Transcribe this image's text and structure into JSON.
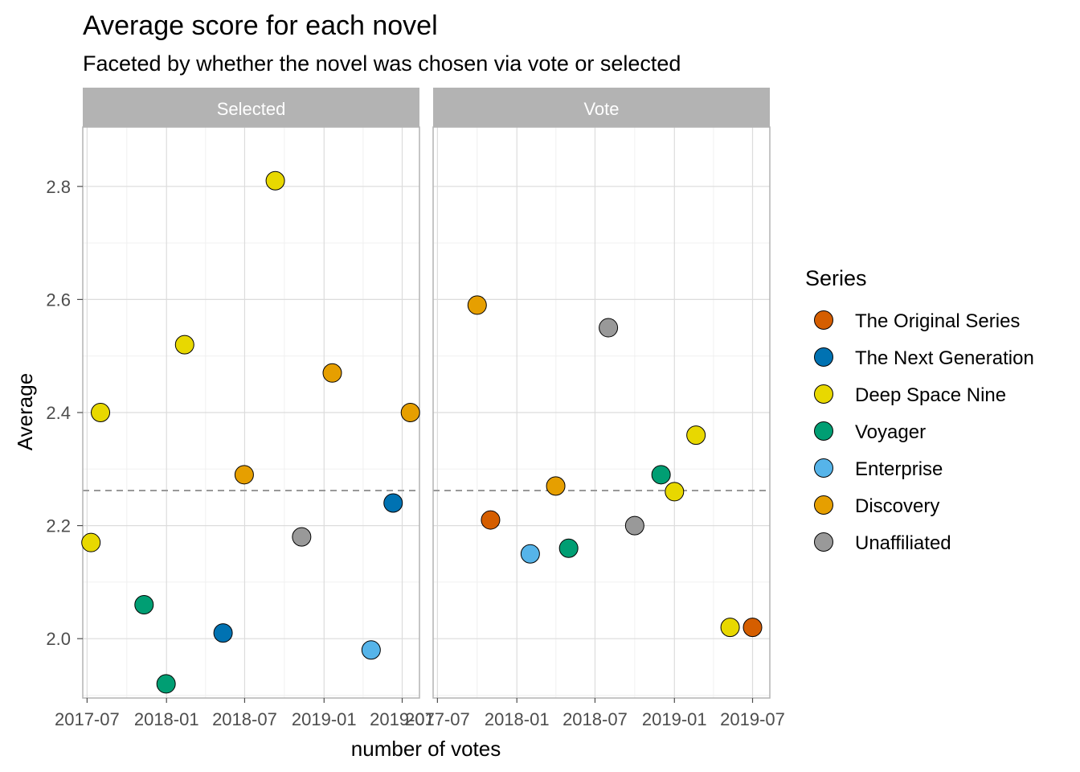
{
  "chart_data": {
    "type": "scatter",
    "title": "Average score for each novel",
    "subtitle": "Faceted by whether the novel was chosen via vote or selected",
    "xlabel": "number of votes",
    "ylabel": "Average",
    "ylim": [
      1.895,
      2.905
    ],
    "xlim": [
      "2017-06-21",
      "2019-08-10"
    ],
    "y_ticks": [
      2.0,
      2.2,
      2.4,
      2.6,
      2.8
    ],
    "y_tick_labels": [
      "2.0",
      "2.2",
      "2.4",
      "2.6",
      "2.8"
    ],
    "x_ticks": [
      "2017-07-01",
      "2018-01-01",
      "2018-07-01",
      "2019-01-01",
      "2019-07-01"
    ],
    "x_tick_labels": [
      "2017-07",
      "2018-01",
      "2018-07",
      "2019-01",
      "2019-07"
    ],
    "reference_line": 2.262,
    "grid": true,
    "legend_position": "right",
    "legend_title": "Series",
    "series": [
      {
        "name": "The Original Series",
        "color": "#D55E00"
      },
      {
        "name": "The Next Generation",
        "color": "#0072B2"
      },
      {
        "name": "Deep Space Nine",
        "color": "#E8D800"
      },
      {
        "name": "Voyager",
        "color": "#009E73"
      },
      {
        "name": "Enterprise",
        "color": "#56B4E9"
      },
      {
        "name": "Discovery",
        "color": "#E69F00"
      },
      {
        "name": "Unaffiliated",
        "color": "#999999"
      }
    ],
    "facets": [
      {
        "label": "Selected",
        "points": [
          {
            "x": "2017-07-10",
            "y": 2.17,
            "series": "Deep Space Nine"
          },
          {
            "x": "2017-08-01",
            "y": 2.4,
            "series": "Deep Space Nine"
          },
          {
            "x": "2017-11-10",
            "y": 2.06,
            "series": "Voyager"
          },
          {
            "x": "2017-12-31",
            "y": 1.92,
            "series": "Voyager"
          },
          {
            "x": "2018-02-12",
            "y": 2.52,
            "series": "Deep Space Nine"
          },
          {
            "x": "2018-05-12",
            "y": 2.01,
            "series": "The Next Generation"
          },
          {
            "x": "2018-06-30",
            "y": 2.29,
            "series": "Discovery"
          },
          {
            "x": "2018-09-10",
            "y": 2.81,
            "series": "Deep Space Nine"
          },
          {
            "x": "2018-11-10",
            "y": 2.18,
            "series": "Unaffiliated"
          },
          {
            "x": "2019-01-20",
            "y": 2.47,
            "series": "Discovery"
          },
          {
            "x": "2019-04-20",
            "y": 1.98,
            "series": "Enterprise"
          },
          {
            "x": "2019-06-10",
            "y": 2.24,
            "series": "The Next Generation"
          },
          {
            "x": "2019-07-20",
            "y": 2.4,
            "series": "Discovery"
          }
        ]
      },
      {
        "label": "Vote",
        "points": [
          {
            "x": "2017-10-01",
            "y": 2.59,
            "series": "Discovery"
          },
          {
            "x": "2017-11-01",
            "y": 2.21,
            "series": "The Original Series"
          },
          {
            "x": "2018-02-01",
            "y": 2.15,
            "series": "Enterprise"
          },
          {
            "x": "2018-04-01",
            "y": 2.27,
            "series": "Discovery"
          },
          {
            "x": "2018-05-01",
            "y": 2.16,
            "series": "Voyager"
          },
          {
            "x": "2018-08-01",
            "y": 2.55,
            "series": "Unaffiliated"
          },
          {
            "x": "2018-10-01",
            "y": 2.2,
            "series": "Unaffiliated"
          },
          {
            "x": "2018-12-01",
            "y": 2.29,
            "series": "Voyager"
          },
          {
            "x": "2019-01-01",
            "y": 2.26,
            "series": "Deep Space Nine"
          },
          {
            "x": "2019-02-20",
            "y": 2.36,
            "series": "Deep Space Nine"
          },
          {
            "x": "2019-05-10",
            "y": 2.02,
            "series": "Deep Space Nine"
          },
          {
            "x": "2019-07-01",
            "y": 2.02,
            "series": "The Original Series"
          }
        ]
      }
    ]
  }
}
